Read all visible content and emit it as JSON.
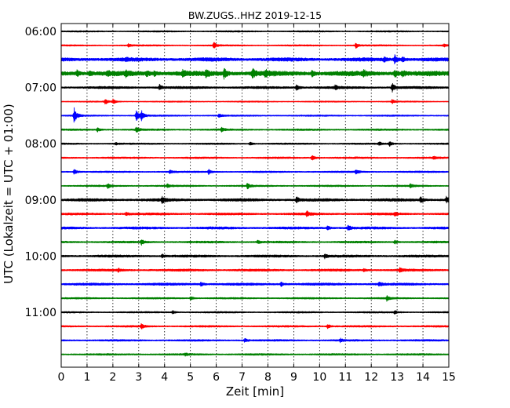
{
  "chart_data": {
    "type": "line",
    "title": "BW.ZUGS..HHZ 2019-12-15",
    "xlabel": "Zeit  [min]",
    "ylabel": "UTC (Lokalzeit = UTC + 01:00)",
    "xlim": [
      0,
      15
    ],
    "x_ticks": [
      "0",
      "1",
      "2",
      "3",
      "4",
      "5",
      "6",
      "7",
      "8",
      "9",
      "10",
      "11",
      "12",
      "13",
      "14",
      "15"
    ],
    "y_tick_labels": [
      "06:00",
      "07:00",
      "08:00",
      "09:00",
      "10:00",
      "11:00"
    ],
    "grid": "vertical dotted lines at each minute",
    "trace_interval_minutes": 15,
    "color_cycle": [
      "#000000",
      "#ff0000",
      "#0000ff",
      "#008000"
    ],
    "series": [
      {
        "start": "06:00",
        "color": "#000000",
        "amp": 0.18,
        "events": []
      },
      {
        "start": "06:15",
        "color": "#ff0000",
        "amp": 0.18,
        "events": [
          [
            2.6,
            0.5
          ],
          [
            5.9,
            0.9
          ],
          [
            11.4,
            0.9
          ],
          [
            14.8,
            0.4
          ]
        ]
      },
      {
        "start": "06:30",
        "color": "#0000ff",
        "amp": 0.45,
        "events": [
          [
            2.5,
            0.4
          ],
          [
            12.5,
            0.8
          ],
          [
            12.9,
            1.4
          ],
          [
            13.2,
            0.7
          ]
        ]
      },
      {
        "start": "06:45",
        "color": "#008000",
        "amp": 0.6,
        "events": [
          [
            0.6,
            0.8
          ],
          [
            1.1,
            0.7
          ],
          [
            1.8,
            0.7
          ],
          [
            2.5,
            0.6
          ],
          [
            3.3,
            0.8
          ],
          [
            3.6,
            0.6
          ],
          [
            4.7,
            0.7
          ],
          [
            5.6,
            0.9
          ],
          [
            6.3,
            1.6
          ],
          [
            7.4,
            1.4
          ],
          [
            7.9,
            1.0
          ],
          [
            9.7,
            0.8
          ],
          [
            11.7,
            0.8
          ],
          [
            12.9,
            1.0
          ],
          [
            13.2,
            0.8
          ]
        ]
      },
      {
        "start": "07:00",
        "color": "#000000",
        "amp": 0.3,
        "events": [
          [
            3.8,
            0.8
          ],
          [
            9.1,
            0.9
          ],
          [
            10.6,
            0.6
          ],
          [
            12.8,
            1.4
          ]
        ]
      },
      {
        "start": "07:15",
        "color": "#ff0000",
        "amp": 0.15,
        "events": [
          [
            1.7,
            0.9
          ],
          [
            2.0,
            0.8
          ],
          [
            12.8,
            0.6
          ]
        ]
      },
      {
        "start": "07:30",
        "color": "#0000ff",
        "amp": 0.18,
        "events": [
          [
            0.5,
            2.6
          ],
          [
            2.9,
            2.0
          ],
          [
            3.1,
            1.6
          ],
          [
            6.1,
            0.6
          ]
        ]
      },
      {
        "start": "07:45",
        "color": "#008000",
        "amp": 0.22,
        "events": [
          [
            1.4,
            0.6
          ],
          [
            2.9,
            0.8
          ],
          [
            6.2,
            0.6
          ]
        ]
      },
      {
        "start": "08:00",
        "color": "#000000",
        "amp": 0.2,
        "events": [
          [
            2.1,
            0.4
          ],
          [
            7.3,
            0.5
          ],
          [
            12.3,
            0.5
          ],
          [
            12.7,
            0.7
          ]
        ]
      },
      {
        "start": "08:15",
        "color": "#ff0000",
        "amp": 0.22,
        "events": [
          [
            9.7,
            0.9
          ],
          [
            14.4,
            0.4
          ]
        ]
      },
      {
        "start": "08:30",
        "color": "#0000ff",
        "amp": 0.2,
        "events": [
          [
            0.5,
            0.9
          ],
          [
            4.2,
            0.7
          ],
          [
            5.7,
            0.8
          ],
          [
            11.4,
            0.7
          ]
        ]
      },
      {
        "start": "08:45",
        "color": "#008000",
        "amp": 0.2,
        "events": [
          [
            1.8,
            0.7
          ],
          [
            4.1,
            0.5
          ],
          [
            7.2,
            0.9
          ],
          [
            13.5,
            0.6
          ]
        ]
      },
      {
        "start": "09:00",
        "color": "#000000",
        "amp": 0.35,
        "events": [
          [
            3.9,
            0.9
          ],
          [
            9.1,
            0.9
          ],
          [
            13.9,
            0.8
          ],
          [
            14.9,
            0.9
          ]
        ]
      },
      {
        "start": "09:15",
        "color": "#ff0000",
        "amp": 0.28,
        "events": [
          [
            2.5,
            0.5
          ],
          [
            9.5,
            0.9
          ],
          [
            12.9,
            0.5
          ]
        ]
      },
      {
        "start": "09:30",
        "color": "#0000ff",
        "amp": 0.3,
        "events": [
          [
            10.3,
            0.6
          ],
          [
            11.1,
            0.8
          ]
        ]
      },
      {
        "start": "09:45",
        "color": "#008000",
        "amp": 0.25,
        "events": [
          [
            3.1,
            0.8
          ],
          [
            7.6,
            0.5
          ],
          [
            12.9,
            0.6
          ]
        ]
      },
      {
        "start": "10:00",
        "color": "#000000",
        "amp": 0.3,
        "events": [
          [
            3.9,
            0.6
          ],
          [
            10.2,
            0.6
          ]
        ]
      },
      {
        "start": "10:15",
        "color": "#ff0000",
        "amp": 0.28,
        "events": [
          [
            2.2,
            0.5
          ],
          [
            11.7,
            0.5
          ],
          [
            13.1,
            0.6
          ]
        ]
      },
      {
        "start": "10:30",
        "color": "#0000ff",
        "amp": 0.3,
        "events": [
          [
            5.4,
            0.6
          ],
          [
            8.5,
            0.6
          ],
          [
            12.3,
            0.6
          ]
        ]
      },
      {
        "start": "10:45",
        "color": "#008000",
        "amp": 0.2,
        "events": [
          [
            5.0,
            0.6
          ],
          [
            12.6,
            0.8
          ]
        ]
      },
      {
        "start": "11:00",
        "color": "#000000",
        "amp": 0.2,
        "events": [
          [
            4.3,
            0.5
          ],
          [
            12.9,
            0.6
          ]
        ]
      },
      {
        "start": "11:15",
        "color": "#ff0000",
        "amp": 0.22,
        "events": [
          [
            3.1,
            0.7
          ],
          [
            10.3,
            0.7
          ]
        ]
      },
      {
        "start": "11:30",
        "color": "#0000ff",
        "amp": 0.22,
        "events": [
          [
            7.1,
            0.6
          ],
          [
            10.8,
            0.5
          ]
        ]
      },
      {
        "start": "11:45",
        "color": "#008000",
        "amp": 0.22,
        "events": [
          [
            4.8,
            0.4
          ]
        ]
      }
    ]
  }
}
